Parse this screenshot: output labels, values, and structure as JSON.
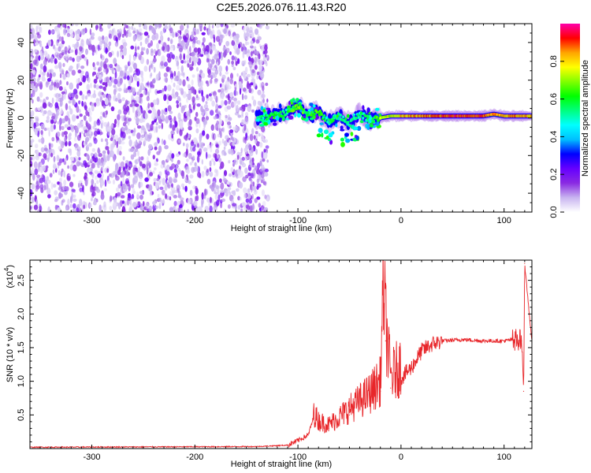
{
  "title": "C2E5.2026.076.11.43.R20",
  "chart_data": [
    {
      "type": "heatmap",
      "xlabel": "Height of straight line (km)",
      "ylabel": "Frequency (Hz)",
      "xlim": [
        -360,
        127
      ],
      "ylim": [
        -50,
        50
      ],
      "xticks": [
        -300,
        -200,
        -100,
        0,
        100
      ],
      "yticks": [
        -40,
        -20,
        0,
        20,
        40
      ],
      "colorbar": {
        "label": "Normalized spectral amplitude",
        "range": [
          0,
          1
        ],
        "ticks": [
          "0.0",
          "0.2",
          "0.4",
          "0.6",
          "0.8"
        ],
        "colormap": [
          "#ffffff",
          "#c8b4f0",
          "#8a2be2",
          "#6600ff",
          "#0000ff",
          "#00bfff",
          "#00ffff",
          "#00ff80",
          "#00ff00",
          "#80ff00",
          "#ffff00",
          "#ffa500",
          "#ff0000",
          "#ff00aa"
        ]
      },
      "regions": [
        {
          "name": "noise",
          "x": [
            -360,
            -135
          ],
          "freq_range": [
            -50,
            50
          ],
          "amplitude": "0.05-0.2"
        },
        {
          "name": "signal",
          "x": [
            -140,
            127
          ],
          "freq_center": 1,
          "amplitude": "0.3-1.0"
        }
      ],
      "signal_trace": {
        "x": [
          -140,
          -125,
          -110,
          -100,
          -90,
          -80,
          -70,
          -60,
          -50,
          -40,
          -30,
          -20,
          -10,
          0,
          20,
          40,
          60,
          80,
          90,
          100,
          110,
          120,
          127
        ],
        "freq": [
          0,
          1,
          3,
          6,
          2,
          3,
          -2,
          1,
          -3,
          2,
          -1,
          0,
          1,
          1,
          1,
          1,
          1,
          1,
          2,
          1,
          1,
          1,
          1
        ],
        "amp": [
          0.45,
          0.6,
          0.55,
          0.7,
          0.55,
          0.65,
          0.5,
          0.6,
          0.5,
          0.55,
          0.5,
          0.7,
          0.75,
          0.8,
          0.85,
          0.9,
          0.92,
          0.9,
          0.85,
          0.8,
          0.88,
          0.85,
          0.8
        ]
      }
    },
    {
      "type": "line",
      "xlabel": "Height of straight line (km)",
      "ylabel": "SNR (10 * v/v)",
      "scale_label": "(x10",
      "scale_exp": "4",
      "ylabel_suffix": ")",
      "xlim": [
        -360,
        127
      ],
      "ylim": [
        0,
        2.8
      ],
      "xticks": [
        -300,
        -200,
        -100,
        0,
        100
      ],
      "yticks": [
        0.5,
        1.0,
        1.5,
        2.0,
        2.5
      ],
      "series": [
        {
          "color": "#e8262a",
          "x": [
            -360,
            -140,
            -110,
            -100,
            -90,
            -85,
            -80,
            -70,
            -60,
            -50,
            -40,
            -30,
            -20,
            -17,
            -15,
            -10,
            0,
            10,
            20,
            30,
            40,
            60,
            80,
            100,
            110,
            117,
            119,
            120,
            127
          ],
          "values": [
            0.02,
            0.03,
            0.05,
            0.12,
            0.2,
            0.45,
            0.35,
            0.3,
            0.4,
            0.5,
            0.6,
            0.7,
            0.85,
            2.1,
            1.6,
            0.9,
            1.05,
            1.2,
            1.45,
            1.55,
            1.6,
            1.62,
            1.6,
            1.6,
            1.62,
            1.6,
            0.85,
            2.75,
            1.58
          ]
        }
      ]
    }
  ]
}
